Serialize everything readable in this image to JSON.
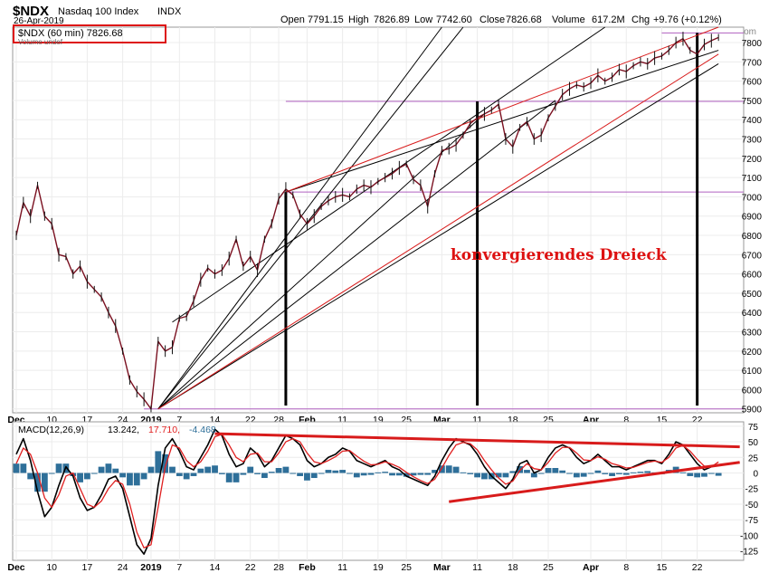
{
  "header": {
    "symbol": "$NDX",
    "name": "Nasdaq 100 Index",
    "exchange": "INDX",
    "date": "26-Apr-2019",
    "open_label": "Open",
    "open": "7791.15",
    "high_label": "High",
    "high": "7826.89",
    "low_label": "Low",
    "low": "7742.60",
    "close_label": "Close",
    "close": "7826.68",
    "volume_label": "Volume",
    "volume": "617.2M",
    "chg_label": "Chg",
    "chg": "+9.76 (+0.12%)",
    "watermark": "© StockCharts.com",
    "legend_main": "$NDX (60 min) 7826.68",
    "legend_volume": "Volume undef"
  },
  "annotation": {
    "text": "konvergierendes Dreieck",
    "color": "#dd1111"
  },
  "colors": {
    "price_line": "#7a1020",
    "trend_black": "#000000",
    "trend_red": "#d81b1b",
    "level_purple": "#b060c0",
    "macd_line": "#000000",
    "signal_line": "#e02020",
    "histogram": "#2e6f99",
    "highlight_box": "#dd1111"
  },
  "chart_data": [
    {
      "type": "line",
      "title": "$NDX Nasdaq 100 Index INDX (60 min)",
      "x_tick_labels": [
        "Dec",
        "10",
        "17",
        "24",
        "2019",
        "7",
        "14",
        "22",
        "28",
        "Feb",
        "11",
        "19",
        "25",
        "Mar",
        "11",
        "18",
        "25",
        "Apr",
        "8",
        "15",
        "22"
      ],
      "y_tick_labels": [
        "5900",
        "6000",
        "6100",
        "6200",
        "6300",
        "6400",
        "6500",
        "6600",
        "6700",
        "6800",
        "6900",
        "7000",
        "7100",
        "7200",
        "7300",
        "7400",
        "7500",
        "7600",
        "7700",
        "7800"
      ],
      "ylim": [
        5880,
        7880
      ],
      "x_unit": "trading day index from 2018-12-03 (0) to 2019-04-26 (99)",
      "series": [
        {
          "name": "$NDX (60 min) close",
          "x": [
            -1,
            0,
            1,
            2,
            3,
            4,
            5,
            6,
            7,
            8,
            9,
            10,
            11,
            12,
            13,
            14,
            15,
            16,
            17,
            18,
            19,
            20,
            21,
            22,
            23,
            24,
            25,
            26,
            27,
            28,
            29,
            30,
            31,
            32,
            33,
            34,
            35,
            36,
            37,
            38,
            39,
            40,
            41,
            42,
            43,
            44,
            45,
            46,
            47,
            48,
            49,
            50,
            51,
            52,
            53,
            54,
            55,
            56,
            57,
            58,
            59,
            60,
            61,
            62,
            63,
            64,
            65,
            66,
            67,
            68,
            69,
            70,
            71,
            72,
            73,
            74,
            75,
            76,
            77,
            78,
            79,
            80,
            81,
            82,
            83,
            84,
            85,
            86,
            87,
            88,
            89,
            90,
            91,
            92,
            93,
            94,
            95,
            96,
            97,
            98,
            99
          ],
          "values": [
            6680,
            6800,
            6970,
            6900,
            7060,
            6900,
            6860,
            6700,
            6690,
            6600,
            6640,
            6560,
            6520,
            6480,
            6400,
            6330,
            6200,
            6050,
            5990,
            5950,
            5900,
            6250,
            6200,
            6220,
            6370,
            6380,
            6460,
            6570,
            6630,
            6600,
            6620,
            6680,
            6780,
            6640,
            6690,
            6620,
            6780,
            6860,
            6990,
            7040,
            7010,
            6910,
            6860,
            6900,
            6950,
            6980,
            7000,
            7010,
            7000,
            7040,
            7060,
            7050,
            7080,
            7100,
            7120,
            7150,
            7170,
            7090,
            7060,
            6950,
            7120,
            7240,
            7250,
            7270,
            7320,
            7380,
            7410,
            7430,
            7450,
            7480,
            7300,
            7260,
            7360,
            7390,
            7300,
            7320,
            7410,
            7470,
            7530,
            7560,
            7580,
            7570,
            7590,
            7630,
            7600,
            7620,
            7660,
            7650,
            7680,
            7700,
            7690,
            7720,
            7730,
            7760,
            7800,
            7820,
            7760,
            7740,
            7790,
            7810,
            7826.68
          ]
        }
      ],
      "horizontal_levels": [
        5900,
        7025,
        7495,
        7850
      ],
      "vertical_markers_x": [
        38,
        65,
        96
      ],
      "trendlines_black": [
        {
          "x": [
            20,
            60
          ],
          "y": [
            5900,
            7880
          ]
        },
        {
          "x": [
            20,
            63
          ],
          "y": [
            5900,
            7880
          ]
        },
        {
          "x": [
            20,
            66
          ],
          "y": [
            5900,
            7430
          ]
        },
        {
          "x": [
            20,
            76
          ],
          "y": [
            5900,
            7500
          ]
        },
        {
          "x": [
            20,
            99
          ],
          "y": [
            5900,
            7690
          ]
        },
        {
          "x": [
            22,
            83
          ],
          "y": [
            6350,
            7880
          ]
        },
        {
          "x": [
            38,
            99
          ],
          "y": [
            7025,
            7760
          ]
        }
      ],
      "trendlines_red": [
        {
          "x": [
            20,
            99
          ],
          "y": [
            5900,
            7740
          ]
        },
        {
          "x": [
            38,
            99
          ],
          "y": [
            7025,
            7880
          ]
        }
      ]
    },
    {
      "type": "line",
      "title": "MACD(12,26,9) 13.242, 17.710, -4.468",
      "legend": [
        "MACD(12,26,9)",
        "13.242,",
        "17.710,",
        "-4.468"
      ],
      "x_tick_labels": [
        "Dec",
        "10",
        "17",
        "24",
        "2019",
        "7",
        "14",
        "22",
        "28",
        "Feb",
        "11",
        "19",
        "25",
        "Mar",
        "11",
        "18",
        "25",
        "Apr",
        "8",
        "15",
        "22"
      ],
      "y_tick_labels": [
        "-125",
        "-100",
        "-75",
        "-50",
        "-25",
        "0",
        "25",
        "50",
        "75"
      ],
      "ylim": [
        -140,
        82
      ],
      "series": [
        {
          "name": "MACD",
          "x": [
            -1,
            0,
            1,
            2,
            3,
            4,
            5,
            6,
            7,
            8,
            9,
            10,
            11,
            12,
            13,
            14,
            15,
            16,
            17,
            18,
            19,
            20,
            21,
            22,
            23,
            24,
            25,
            26,
            27,
            28,
            29,
            30,
            31,
            32,
            33,
            34,
            35,
            36,
            37,
            38,
            39,
            40,
            41,
            42,
            43,
            44,
            45,
            46,
            47,
            48,
            49,
            50,
            51,
            52,
            53,
            54,
            55,
            56,
            57,
            58,
            59,
            60,
            61,
            62,
            63,
            64,
            65,
            66,
            67,
            68,
            69,
            70,
            71,
            72,
            73,
            74,
            75,
            76,
            77,
            78,
            79,
            80,
            81,
            82,
            83,
            84,
            85,
            86,
            87,
            88,
            89,
            90,
            91,
            92,
            93,
            94,
            95,
            96,
            97,
            98,
            99
          ],
          "values": [
            -10,
            30,
            55,
            20,
            -30,
            -70,
            -55,
            -20,
            10,
            -5,
            -40,
            -60,
            -55,
            -35,
            -10,
            -5,
            -25,
            -70,
            -115,
            -130,
            -105,
            -20,
            40,
            55,
            35,
            10,
            5,
            25,
            45,
            70,
            60,
            30,
            10,
            15,
            40,
            30,
            10,
            20,
            40,
            60,
            55,
            45,
            20,
            10,
            15,
            25,
            30,
            40,
            35,
            20,
            15,
            10,
            15,
            20,
            10,
            5,
            -5,
            -10,
            -15,
            -20,
            -5,
            20,
            40,
            55,
            50,
            45,
            30,
            10,
            -5,
            -15,
            -25,
            -10,
            15,
            20,
            0,
            5,
            25,
            40,
            45,
            40,
            25,
            15,
            20,
            30,
            20,
            10,
            10,
            5,
            10,
            15,
            20,
            20,
            15,
            30,
            50,
            45,
            30,
            15,
            5,
            10,
            13.242
          ]
        },
        {
          "name": "Signal",
          "x": [
            -1,
            0,
            1,
            2,
            3,
            4,
            5,
            6,
            7,
            8,
            9,
            10,
            11,
            12,
            13,
            14,
            15,
            16,
            17,
            18,
            19,
            20,
            21,
            22,
            23,
            24,
            25,
            26,
            27,
            28,
            29,
            30,
            31,
            32,
            33,
            34,
            35,
            36,
            37,
            38,
            39,
            40,
            41,
            42,
            43,
            44,
            45,
            46,
            47,
            48,
            49,
            50,
            51,
            52,
            53,
            54,
            55,
            56,
            57,
            58,
            59,
            60,
            61,
            62,
            63,
            64,
            65,
            66,
            67,
            68,
            69,
            70,
            71,
            72,
            73,
            74,
            75,
            76,
            77,
            78,
            79,
            80,
            81,
            82,
            83,
            84,
            85,
            86,
            87,
            88,
            89,
            90,
            91,
            92,
            93,
            94,
            95,
            96,
            97,
            98,
            99
          ],
          "values": [
            -15,
            15,
            40,
            30,
            0,
            -40,
            -55,
            -35,
            -5,
            0,
            -25,
            -50,
            -55,
            -45,
            -25,
            -12,
            -18,
            -50,
            -95,
            -120,
            -115,
            -55,
            10,
            45,
            40,
            20,
            10,
            18,
            35,
            58,
            62,
            45,
            25,
            18,
            30,
            32,
            18,
            18,
            32,
            50,
            55,
            50,
            32,
            18,
            15,
            20,
            26,
            35,
            36,
            27,
            19,
            13,
            14,
            18,
            14,
            9,
            1,
            -6,
            -12,
            -17,
            -10,
            8,
            28,
            45,
            49,
            47,
            37,
            20,
            5,
            -8,
            -18,
            -13,
            4,
            15,
            7,
            5,
            17,
            32,
            41,
            41,
            32,
            21,
            20,
            26,
            22,
            15,
            12,
            8,
            9,
            13,
            17,
            19,
            17,
            25,
            40,
            44,
            35,
            22,
            11,
            10,
            17.71
          ]
        }
      ],
      "histogram_values": [
        5,
        15,
        15,
        -10,
        -30,
        -30,
        0,
        15,
        15,
        -5,
        -15,
        -10,
        0,
        10,
        15,
        7,
        -7,
        -20,
        -20,
        -10,
        10,
        35,
        30,
        10,
        -5,
        -10,
        -5,
        7,
        10,
        12,
        -2,
        -15,
        -15,
        -3,
        10,
        -2,
        -8,
        2,
        8,
        10,
        0,
        -5,
        -12,
        -8,
        0,
        5,
        4,
        5,
        -1,
        -7,
        -4,
        -3,
        1,
        2,
        -4,
        -4,
        -6,
        -4,
        -3,
        -3,
        5,
        12,
        12,
        10,
        1,
        -2,
        -7,
        -10,
        -10,
        -7,
        -7,
        3,
        11,
        5,
        -7,
        0,
        8,
        8,
        4,
        -1,
        -7,
        -6,
        0,
        4,
        -2,
        -5,
        -2,
        -3,
        1,
        2,
        3,
        1,
        -2,
        5,
        10,
        1,
        -5,
        -7,
        -6,
        0,
        -4.468
      ],
      "converging_triangle": {
        "upper": {
          "x": [
            28,
            102
          ],
          "y": [
            63,
            42
          ]
        },
        "lower": {
          "x": [
            61,
            102
          ],
          "y": [
            -46,
            17
          ]
        }
      }
    }
  ]
}
